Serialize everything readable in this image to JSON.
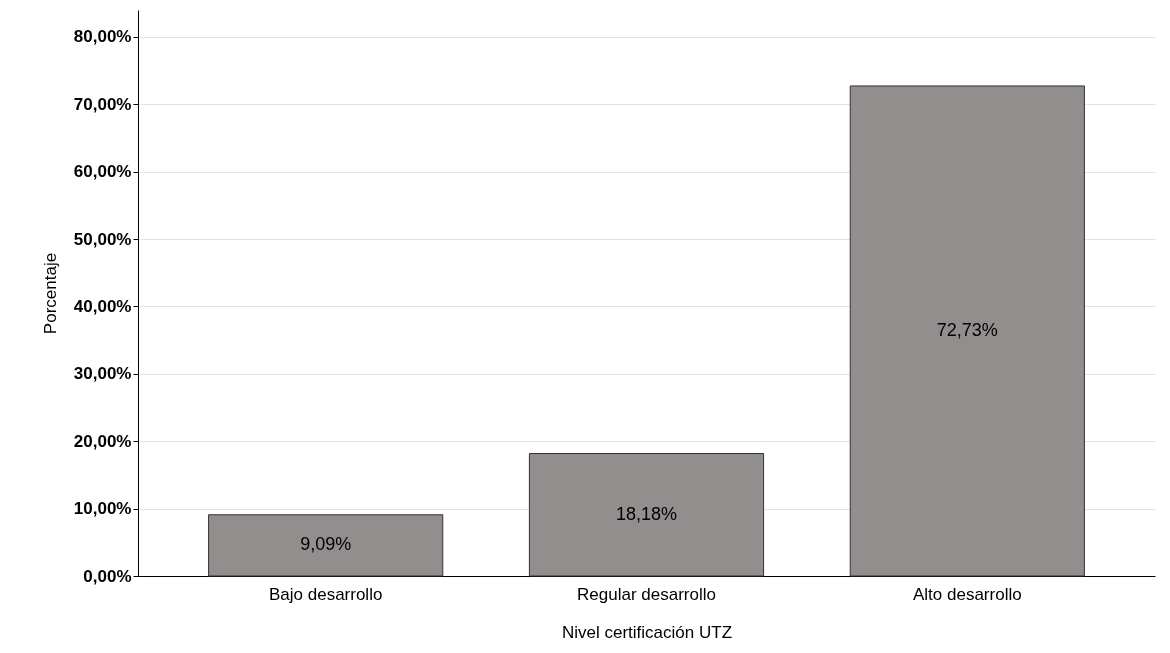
{
  "chart_data": {
    "type": "bar",
    "xlabel": "Nivel certificación UTZ",
    "ylabel": "Porcentaje",
    "categories": [
      "Bajo desarrollo",
      "Regular desarrollo",
      "Alto desarrollo"
    ],
    "values": [
      9.09,
      18.18,
      72.73
    ],
    "color": "#918e8d",
    "value_labels": [
      "9,09%",
      "18,18%",
      "72,73%"
    ],
    "ylim": [
      0,
      84
    ],
    "yticks": [
      {
        "value": 0,
        "label": "0,00%"
      },
      {
        "value": 10,
        "label": "10,00%"
      },
      {
        "value": 20,
        "label": "20,00%"
      },
      {
        "value": 30,
        "label": "30,00%"
      },
      {
        "value": 40,
        "label": "40,00%"
      },
      {
        "value": 50,
        "label": "50,00%"
      },
      {
        "value": 60,
        "label": "60,00%"
      },
      {
        "value": 70,
        "label": "70,00%"
      },
      {
        "value": 80,
        "label": "80,00%"
      }
    ],
    "grid": "y"
  }
}
